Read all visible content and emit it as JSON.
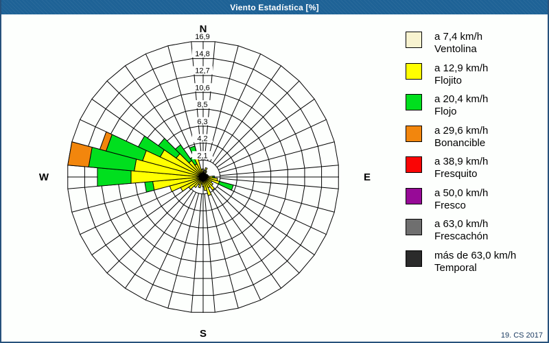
{
  "window": {
    "title": "Viento Estadística [%]",
    "footer": "19. CS 2017"
  },
  "colors": {
    "titlebar": "#1e6296",
    "frame_border": "#27527c",
    "grid": "#000000",
    "footer_text": "#17375e"
  },
  "chart_data": {
    "type": "wind-rose",
    "title": "Viento Estadística [%]",
    "units": "%",
    "max": 16.9,
    "ring_step": 2.1125,
    "ring_labels": [
      "2,1",
      "4,2",
      "6,3",
      "8,5",
      "10,6",
      "12,7",
      "14,8",
      "16,9"
    ],
    "sector_width_deg": 10,
    "compass": {
      "n": "N",
      "e": "E",
      "s": "S",
      "w": "W"
    },
    "legend_note": "petal values are % per 10° sector, per speed class, stacked from center outward",
    "speed_classes": [
      {
        "label": "a 7,4 km/h",
        "name": "Ventolina",
        "color": "#f8f3d0"
      },
      {
        "label": "a 12,9 km/h",
        "name": "Flojito",
        "color": "#ffff00"
      },
      {
        "label": "a 20,4 km/h",
        "name": "Flojo",
        "color": "#00df1e"
      },
      {
        "label": "a 29,6 km/h",
        "name": "Bonancible",
        "color": "#f2860d"
      },
      {
        "label": "a 38,9 km/h",
        "name": "Fresquito",
        "color": "#fa0505"
      },
      {
        "label": "a 50,0 km/h",
        "name": "Fresco",
        "color": "#970a97"
      },
      {
        "label": "a 63,0 km/h",
        "name": "Frescachón",
        "color": "#6f6f6f"
      },
      {
        "label": "más de 63,0 km/h",
        "name": "Temporal",
        "color": "#2b2b2b"
      }
    ],
    "petals": [
      {
        "dir": 0,
        "values": [
          1.0,
          0,
          0,
          0,
          0,
          0,
          0,
          0
        ]
      },
      {
        "dir": 10,
        "values": [
          0.5,
          0.3,
          0,
          0,
          0,
          0,
          0,
          0
        ]
      },
      {
        "dir": 20,
        "values": [
          0.9,
          0.3,
          0,
          0,
          0,
          0,
          0,
          0
        ]
      },
      {
        "dir": 30,
        "values": [
          0.5,
          0.3,
          0,
          0,
          0,
          0,
          0,
          0
        ]
      },
      {
        "dir": 40,
        "values": [
          0.3,
          0.2,
          0,
          0,
          0,
          0,
          0,
          0
        ]
      },
      {
        "dir": 50,
        "values": [
          0.3,
          0.2,
          0,
          0,
          0,
          0,
          0,
          0
        ]
      },
      {
        "dir": 60,
        "values": [
          0.3,
          0.3,
          0,
          0,
          0,
          0,
          0,
          0
        ]
      },
      {
        "dir": 70,
        "values": [
          0.3,
          0.3,
          0,
          0,
          0,
          0,
          0,
          0
        ]
      },
      {
        "dir": 80,
        "values": [
          0.3,
          0.4,
          0,
          0,
          0,
          0,
          0,
          0
        ]
      },
      {
        "dir": 90,
        "values": [
          0.3,
          0.9,
          0.2,
          0,
          0,
          0,
          0,
          0
        ]
      },
      {
        "dir": 100,
        "values": [
          0.3,
          1.5,
          0,
          0,
          0,
          0,
          0,
          0
        ]
      },
      {
        "dir": 110,
        "values": [
          0.3,
          1.8,
          1.8,
          0,
          0,
          0,
          0,
          0
        ]
      },
      {
        "dir": 120,
        "values": [
          0.3,
          0.9,
          0,
          0,
          0,
          0,
          0,
          0
        ]
      },
      {
        "dir": 130,
        "values": [
          0.3,
          1.2,
          0,
          0,
          0,
          0,
          0,
          0
        ]
      },
      {
        "dir": 140,
        "values": [
          0.3,
          1.7,
          0,
          0,
          0,
          0,
          0,
          0
        ]
      },
      {
        "dir": 150,
        "values": [
          0.3,
          1.2,
          0,
          0,
          0,
          0,
          0,
          0
        ]
      },
      {
        "dir": 160,
        "values": [
          0.3,
          2.1,
          0,
          0,
          0,
          0,
          0,
          0
        ]
      },
      {
        "dir": 170,
        "values": [
          0.3,
          1.4,
          0,
          0,
          0,
          0,
          0,
          0
        ]
      },
      {
        "dir": 180,
        "values": [
          0.3,
          0.9,
          0,
          0,
          0,
          0,
          0,
          0
        ]
      },
      {
        "dir": 190,
        "values": [
          0.3,
          0.6,
          0,
          0,
          0,
          0,
          0,
          0
        ]
      },
      {
        "dir": 200,
        "values": [
          0.3,
          1.1,
          0,
          0,
          0,
          0,
          0,
          0
        ]
      },
      {
        "dir": 210,
        "values": [
          0.3,
          0.8,
          0,
          0,
          0,
          0,
          0,
          0
        ]
      },
      {
        "dir": 220,
        "values": [
          0.3,
          1.3,
          0,
          0,
          0,
          0,
          0,
          0
        ]
      },
      {
        "dir": 230,
        "values": [
          0.3,
          1.9,
          0,
          0,
          0,
          0,
          0,
          0
        ]
      },
      {
        "dir": 240,
        "values": [
          0.3,
          2.8,
          0,
          0,
          0,
          0,
          0,
          0
        ]
      },
      {
        "dir": 250,
        "values": [
          0.3,
          4.0,
          0,
          0,
          0,
          0,
          0,
          0
        ]
      },
      {
        "dir": 260,
        "values": [
          0.4,
          5.9,
          1.0,
          0,
          0,
          0,
          0,
          0
        ]
      },
      {
        "dir": 270,
        "values": [
          0.4,
          8.6,
          4.2,
          0,
          0,
          0,
          0,
          0
        ]
      },
      {
        "dir": 280,
        "values": [
          0.5,
          8.1,
          5.7,
          2.6,
          0,
          0,
          0,
          0
        ]
      },
      {
        "dir": 290,
        "values": [
          0.5,
          7.3,
          4.7,
          0.8,
          0,
          0,
          0,
          0
        ]
      },
      {
        "dir": 300,
        "values": [
          0.4,
          5.5,
          3.0,
          0,
          0,
          0,
          0,
          0
        ]
      },
      {
        "dir": 310,
        "values": [
          0.4,
          3.7,
          2.7,
          0,
          0,
          0,
          0,
          0
        ]
      },
      {
        "dir": 320,
        "values": [
          0.3,
          2.2,
          2.4,
          0,
          0,
          0,
          0,
          0
        ]
      },
      {
        "dir": 330,
        "values": [
          0.3,
          1.5,
          1.0,
          0,
          0,
          0,
          0,
          0
        ]
      },
      {
        "dir": 340,
        "values": [
          0.3,
          2.5,
          1.2,
          0,
          0,
          0,
          0,
          0
        ]
      },
      {
        "dir": 350,
        "values": [
          0.3,
          0.7,
          0,
          0,
          0,
          0,
          0,
          0
        ]
      }
    ]
  }
}
